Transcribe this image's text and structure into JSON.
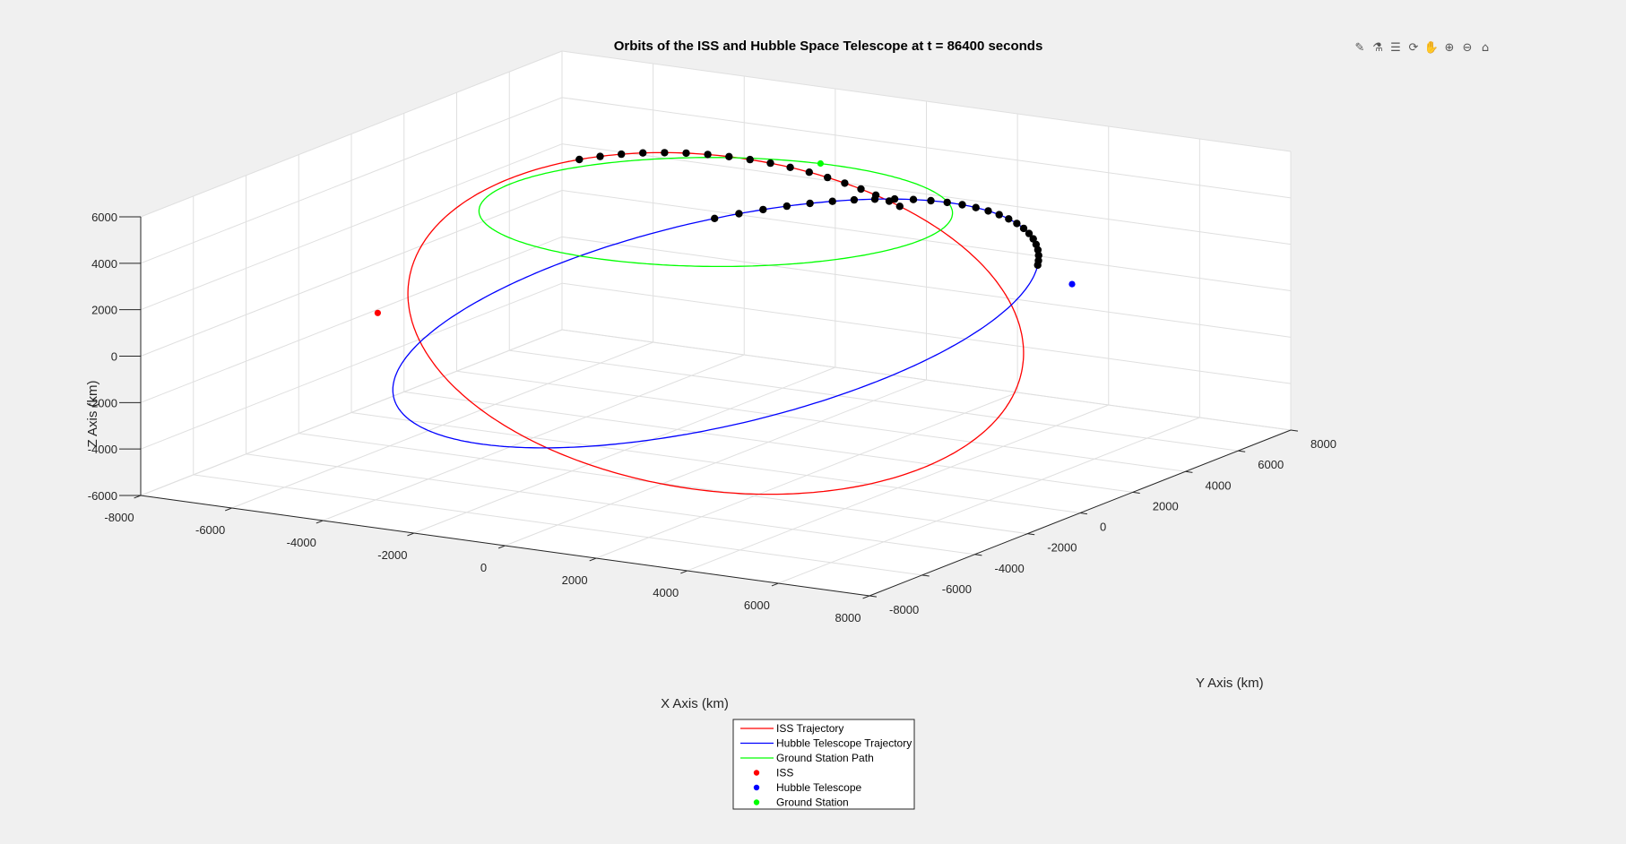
{
  "figure": {
    "title": "Orbits of the ISS and Hubble Space Telescope at t = 86400 seconds",
    "background_color": "#f0f0f0",
    "axes_color": "#ffffff"
  },
  "toolbar": {
    "icons": [
      {
        "name": "brush-icon",
        "glyph": "✎"
      },
      {
        "name": "data-tip-icon",
        "glyph": "⚗"
      },
      {
        "name": "insert-legend-icon",
        "glyph": "☰"
      },
      {
        "name": "rotate-3d-icon",
        "glyph": "⟳"
      },
      {
        "name": "pan-icon",
        "glyph": "✋"
      },
      {
        "name": "zoom-in-icon",
        "glyph": "⊕"
      },
      {
        "name": "zoom-out-icon",
        "glyph": "⊖"
      },
      {
        "name": "restore-view-icon",
        "glyph": "⌂"
      }
    ]
  },
  "chart_data": {
    "type": "line",
    "title": "Orbits of the ISS and Hubble Space Telescope at t = 86400 seconds",
    "xlabel": "X Axis (km)",
    "ylabel": "Y Axis (km)",
    "zlabel": "Z Axis (km)",
    "xlim": [
      -8000,
      8000
    ],
    "ylim": [
      -8000,
      8000
    ],
    "zlim": [
      -6000,
      6000
    ],
    "x_ticks": [
      "-8000",
      "-6000",
      "-4000",
      "-2000",
      "0",
      "2000",
      "4000",
      "6000",
      "8000"
    ],
    "y_ticks": [
      "-8000",
      "-6000",
      "-4000",
      "-2000",
      "0",
      "2000",
      "4000",
      "6000",
      "8000"
    ],
    "z_ticks": [
      "-6000",
      "-4000",
      "-2000",
      "0",
      "2000",
      "4000",
      "6000"
    ],
    "grid": true,
    "view": "3d",
    "legend_placement": "bottom-center",
    "series": [
      {
        "name": "ISS Trajectory",
        "kind": "orbit",
        "color": "#ff0000",
        "radius_km": 6771,
        "inclination_deg": 51.6,
        "raan_deg": 70
      },
      {
        "name": "Hubble Telescope Trajectory",
        "kind": "orbit",
        "color": "#0000ff",
        "radius_km": 6916,
        "inclination_deg": 28.5,
        "raan_deg": -45
      },
      {
        "name": "Ground Station Path",
        "kind": "latitude-circle",
        "color": "#00ff00",
        "radius_km": 4500,
        "z_km": 4800
      },
      {
        "name": "ISS",
        "kind": "point",
        "color": "#ff0000",
        "position_km": [
          -4300,
          -5400,
          1700
        ]
      },
      {
        "name": "Hubble Telescope",
        "kind": "point",
        "color": "#0000ff",
        "position_km": [
          5800,
          3500,
          1700
        ]
      },
      {
        "name": "Ground Station",
        "kind": "point",
        "color": "#00ff00",
        "position_km": [
          -300,
          4500,
          4800
        ]
      }
    ],
    "markers": {
      "color": "#000000",
      "iss_arc_markers": 18,
      "hubble_arc_markers": 26
    },
    "legend": [
      {
        "label": "ISS Trajectory",
        "type": "line",
        "color": "#ff0000"
      },
      {
        "label": "Hubble Telescope Trajectory",
        "type": "line",
        "color": "#0000ff"
      },
      {
        "label": "Ground Station Path",
        "type": "line",
        "color": "#00ff00"
      },
      {
        "label": "ISS",
        "type": "dot",
        "color": "#ff0000"
      },
      {
        "label": "Hubble Telescope",
        "type": "dot",
        "color": "#0000ff"
      },
      {
        "label": "Ground Station",
        "type": "dot",
        "color": "#00ff00"
      }
    ]
  }
}
